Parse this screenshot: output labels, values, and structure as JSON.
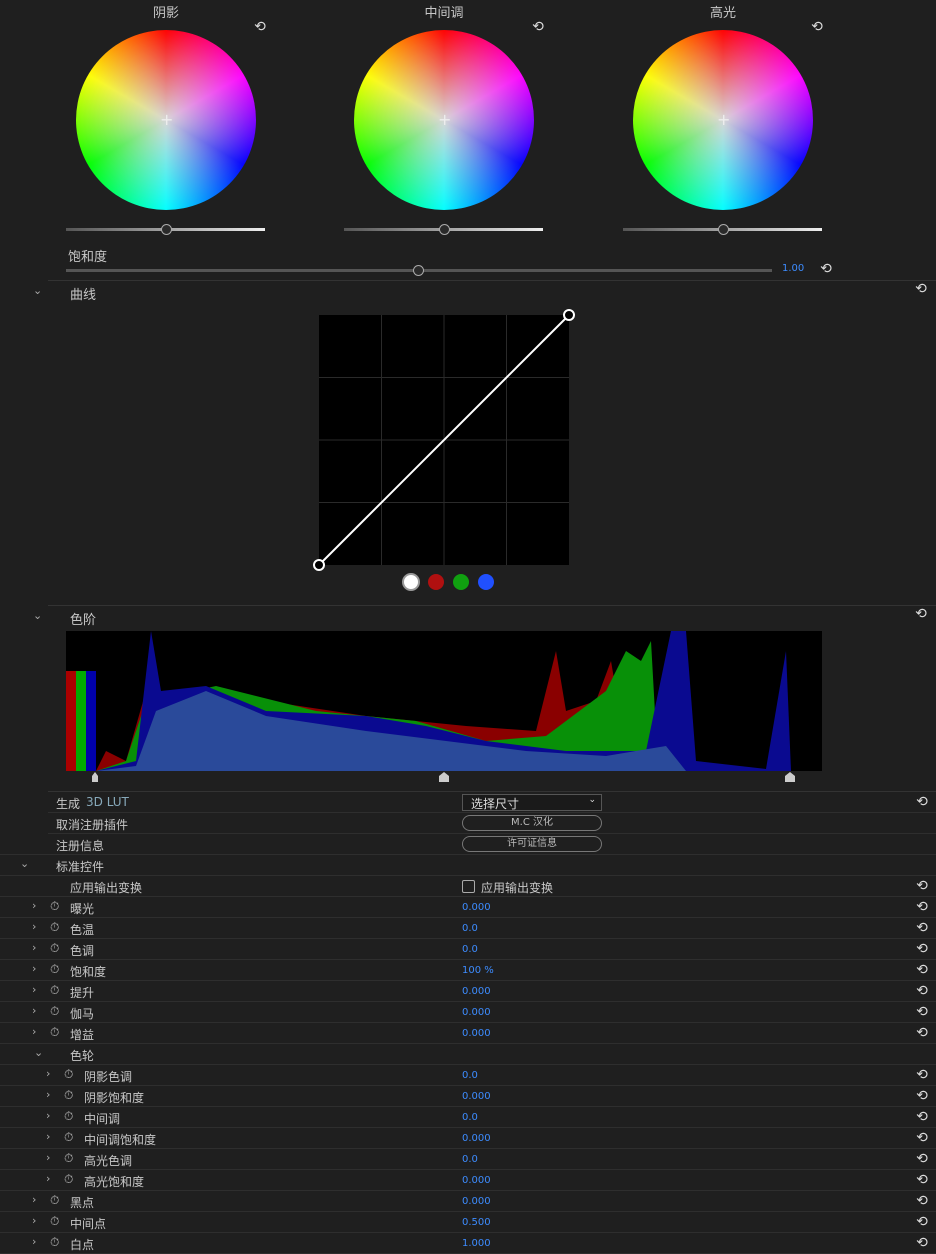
{
  "wheels": [
    {
      "label": "阴影",
      "slider": 0.5
    },
    {
      "label": "中间调",
      "slider": 0.5
    },
    {
      "label": "高光",
      "slider": 0.5
    }
  ],
  "saturation": {
    "label": "饱和度",
    "value": "1.00",
    "slider": 0.5
  },
  "curves": {
    "label": "曲线",
    "channels": [
      "white",
      "red",
      "green",
      "blue"
    ],
    "colors": [
      "#ffffff",
      "#b01010",
      "#10a010",
      "#2050ff"
    ]
  },
  "levels": {
    "label": "色阶"
  },
  "lut": {
    "label": "生成",
    "label_accent": "3D LUT",
    "select": "选择尺寸"
  },
  "unregister": {
    "label": "取消注册插件",
    "button": "M.C 汉化"
  },
  "reginfo": {
    "label": "注册信息",
    "button": "许可证信息"
  },
  "standard": {
    "label": "标准控件"
  },
  "output": {
    "label": "应用输出变换",
    "checkbox": "应用输出变换",
    "checked": false
  },
  "params": [
    {
      "label": "曝光",
      "value": "0.000"
    },
    {
      "label": "色温",
      "value": "0.0"
    },
    {
      "label": "色调",
      "value": "0.0"
    },
    {
      "label": "饱和度",
      "value": "100 %"
    },
    {
      "label": "提升",
      "value": "0.000"
    },
    {
      "label": "伽马",
      "value": "0.000"
    },
    {
      "label": "增益",
      "value": "0.000"
    }
  ],
  "colorwheel": {
    "label": "色轮",
    "items": [
      {
        "label": "阴影色调",
        "value": "0.0"
      },
      {
        "label": "阴影饱和度",
        "value": "0.000"
      },
      {
        "label": "中间调",
        "value": "0.0"
      },
      {
        "label": "中间调饱和度",
        "value": "0.000"
      },
      {
        "label": "高光色调",
        "value": "0.0"
      },
      {
        "label": "高光饱和度",
        "value": "0.000"
      }
    ]
  },
  "points": [
    {
      "label": "黑点",
      "value": "0.000"
    },
    {
      "label": "中间点",
      "value": "0.500"
    },
    {
      "label": "白点",
      "value": "1.000"
    }
  ],
  "accent": "#3d8cff"
}
